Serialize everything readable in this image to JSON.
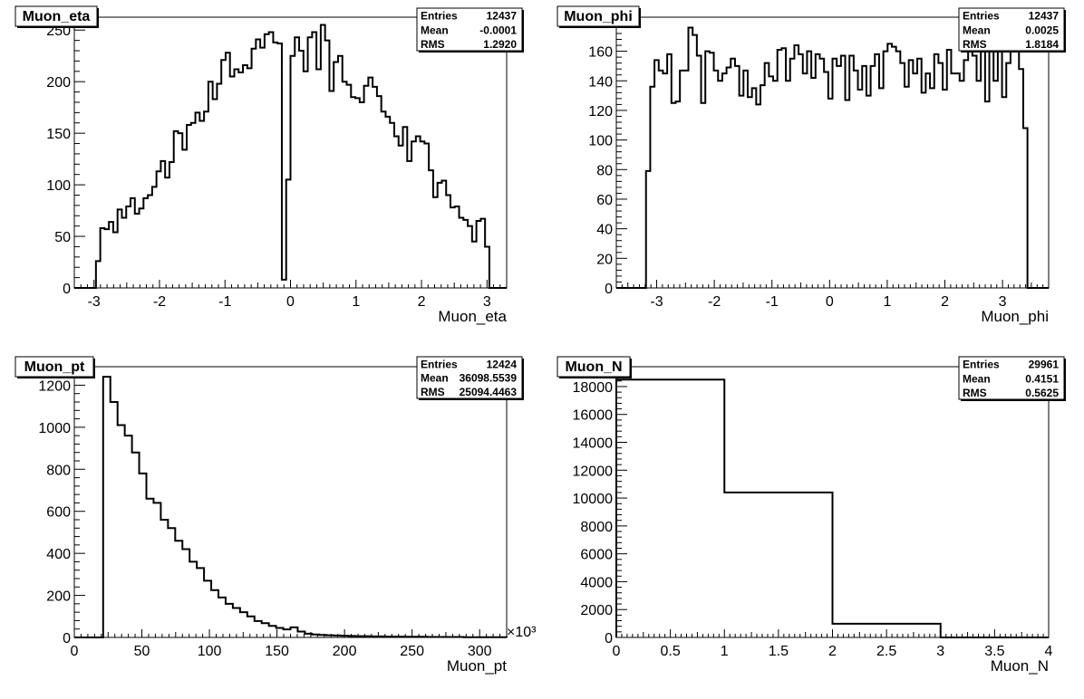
{
  "chart_data": [
    {
      "type": "histogram",
      "title": "Muon_eta",
      "xlabel": "Muon_eta",
      "ylabel": "",
      "exponent": "",
      "xlim": [
        -3.3,
        3.3
      ],
      "ylim": [
        0,
        262.5
      ],
      "xticks": [
        -3,
        -2,
        -1,
        0,
        1,
        2,
        3
      ],
      "xtick_labels": [
        "-3",
        "-2",
        "-1",
        "0",
        "1",
        "2",
        "3"
      ],
      "yticks": [
        0,
        50,
        100,
        150,
        200,
        250
      ],
      "ytick_labels": [
        "0",
        "50",
        "100",
        "150",
        "200",
        "250"
      ],
      "stats": [
        {
          "label": "Entries",
          "value": "12437"
        },
        {
          "label": "Mean",
          "value": "-0.0001"
        },
        {
          "label": "RMS",
          "value": "1.2920"
        }
      ],
      "bins": {
        "low": -3.3,
        "high": 3.3,
        "counts": [
          0,
          0,
          0,
          0,
          0,
          26,
          58,
          57,
          64,
          54,
          76,
          68,
          79,
          87,
          72,
          77,
          87,
          90,
          98,
          113,
          123,
          107,
          122,
          152,
          150,
          134,
          158,
          160,
          170,
          162,
          171,
          200,
          183,
          198,
          221,
          228,
          205,
          212,
          209,
          216,
          213,
          232,
          241,
          233,
          246,
          248,
          238,
          237,
          8,
          105,
          225,
          243,
          230,
          210,
          243,
          248,
          212,
          255,
          240,
          191,
          219,
          225,
          200,
          197,
          185,
          184,
          180,
          196,
          204,
          195,
          186,
          171,
          166,
          160,
          147,
          138,
          156,
          123,
          142,
          147,
          142,
          140,
          114,
          88,
          102,
          104,
          90,
          78,
          79,
          68,
          66,
          60,
          45,
          65,
          67,
          40,
          0,
          0,
          0,
          0
        ]
      }
    },
    {
      "type": "histogram",
      "title": "Muon_phi",
      "xlabel": "Muon_phi",
      "ylabel": "",
      "exponent": "",
      "xlim": [
        -3.7,
        3.8
      ],
      "ylim": [
        0,
        183
      ],
      "xticks": [
        -3,
        -2,
        -1,
        0,
        1,
        2,
        3
      ],
      "xtick_labels": [
        "-3",
        "-2",
        "-1",
        "0",
        "1",
        "2",
        "3"
      ],
      "yticks": [
        0,
        20,
        40,
        60,
        80,
        100,
        120,
        140,
        160,
        180
      ],
      "ytick_labels": [
        "0",
        "20",
        "40",
        "60",
        "80",
        "100",
        "120",
        "140",
        "160",
        "180"
      ],
      "stats": [
        {
          "label": "Entries",
          "value": "12437"
        },
        {
          "label": "Mean",
          "value": "0.0025"
        },
        {
          "label": "RMS",
          "value": "1.8184"
        }
      ],
      "bins": {
        "low": -3.7,
        "high": 3.8,
        "counts": [
          0,
          0,
          0,
          0,
          0,
          0,
          0,
          79,
          136,
          154,
          147,
          145,
          158,
          125,
          126,
          147,
          147,
          176,
          171,
          157,
          125,
          160,
          159,
          147,
          140,
          145,
          149,
          155,
          150,
          130,
          147,
          129,
          135,
          124,
          137,
          152,
          143,
          140,
          161,
          162,
          140,
          155,
          164,
          158,
          145,
          160,
          142,
          158,
          155,
          146,
          128,
          155,
          150,
          157,
          127,
          157,
          147,
          134,
          150,
          130,
          150,
          158,
          135,
          160,
          165,
          163,
          160,
          152,
          136,
          154,
          145,
          155,
          132,
          145,
          135,
          158,
          152,
          134,
          161,
          145,
          145,
          140,
          154,
          160,
          157,
          140,
          163,
          126,
          163,
          140,
          163,
          129,
          152,
          163,
          161,
          148,
          108,
          0,
          0,
          0,
          0,
          0
        ]
      }
    },
    {
      "type": "histogram",
      "title": "Muon_pt",
      "xlabel": "Muon_pt",
      "ylabel": "",
      "exponent": "×10³",
      "xlim": [
        0,
        320
      ],
      "ylim": [
        0,
        1288
      ],
      "xticks": [
        0,
        50,
        100,
        150,
        200,
        250,
        300
      ],
      "xtick_labels": [
        "0",
        "50",
        "100",
        "150",
        "200",
        "250",
        "300"
      ],
      "yticks": [
        0,
        200,
        400,
        600,
        800,
        1000,
        1200
      ],
      "ytick_labels": [
        "0",
        "200",
        "400",
        "600",
        "800",
        "1000",
        "1200"
      ],
      "stats": [
        {
          "label": "Entries",
          "value": "12424"
        },
        {
          "label": "Mean",
          "value": "36098.5539"
        },
        {
          "label": "RMS",
          "value": "25094.4463"
        }
      ],
      "bins": {
        "low": 0,
        "high": 320,
        "counts": [
          0,
          0,
          0,
          0,
          1240,
          1120,
          1010,
          960,
          880,
          780,
          660,
          640,
          560,
          520,
          460,
          420,
          360,
          330,
          270,
          225,
          190,
          160,
          140,
          120,
          100,
          78,
          68,
          55,
          45,
          38,
          48,
          28,
          18,
          14,
          12,
          10,
          9,
          8,
          7,
          6,
          6,
          5,
          5,
          4,
          4,
          4,
          3,
          3,
          3,
          2,
          2,
          2,
          2,
          2,
          1,
          1,
          1,
          1,
          1,
          1
        ]
      }
    },
    {
      "type": "histogram",
      "title": "Muon_N",
      "xlabel": "Muon_N",
      "ylabel": "",
      "exponent": "",
      "xlim": [
        0,
        4
      ],
      "ylim": [
        0,
        19425
      ],
      "xticks": [
        0,
        0.5,
        1,
        1.5,
        2,
        2.5,
        3,
        3.5,
        4
      ],
      "xtick_labels": [
        "0",
        "0.5",
        "1",
        "1.5",
        "2",
        "2.5",
        "3",
        "3.5",
        "4"
      ],
      "yticks": [
        0,
        2000,
        4000,
        6000,
        8000,
        10000,
        12000,
        14000,
        16000,
        18000
      ],
      "ytick_labels": [
        "0",
        "2000",
        "4000",
        "6000",
        "8000",
        "10000",
        "12000",
        "14000",
        "16000",
        "18000"
      ],
      "stats": [
        {
          "label": "Entries",
          "value": "29961"
        },
        {
          "label": "Mean",
          "value": "0.4151"
        },
        {
          "label": "RMS",
          "value": "0.5625"
        }
      ],
      "bins": {
        "low": 0,
        "high": 4,
        "counts": [
          18500,
          10400,
          980,
          0
        ]
      }
    }
  ]
}
